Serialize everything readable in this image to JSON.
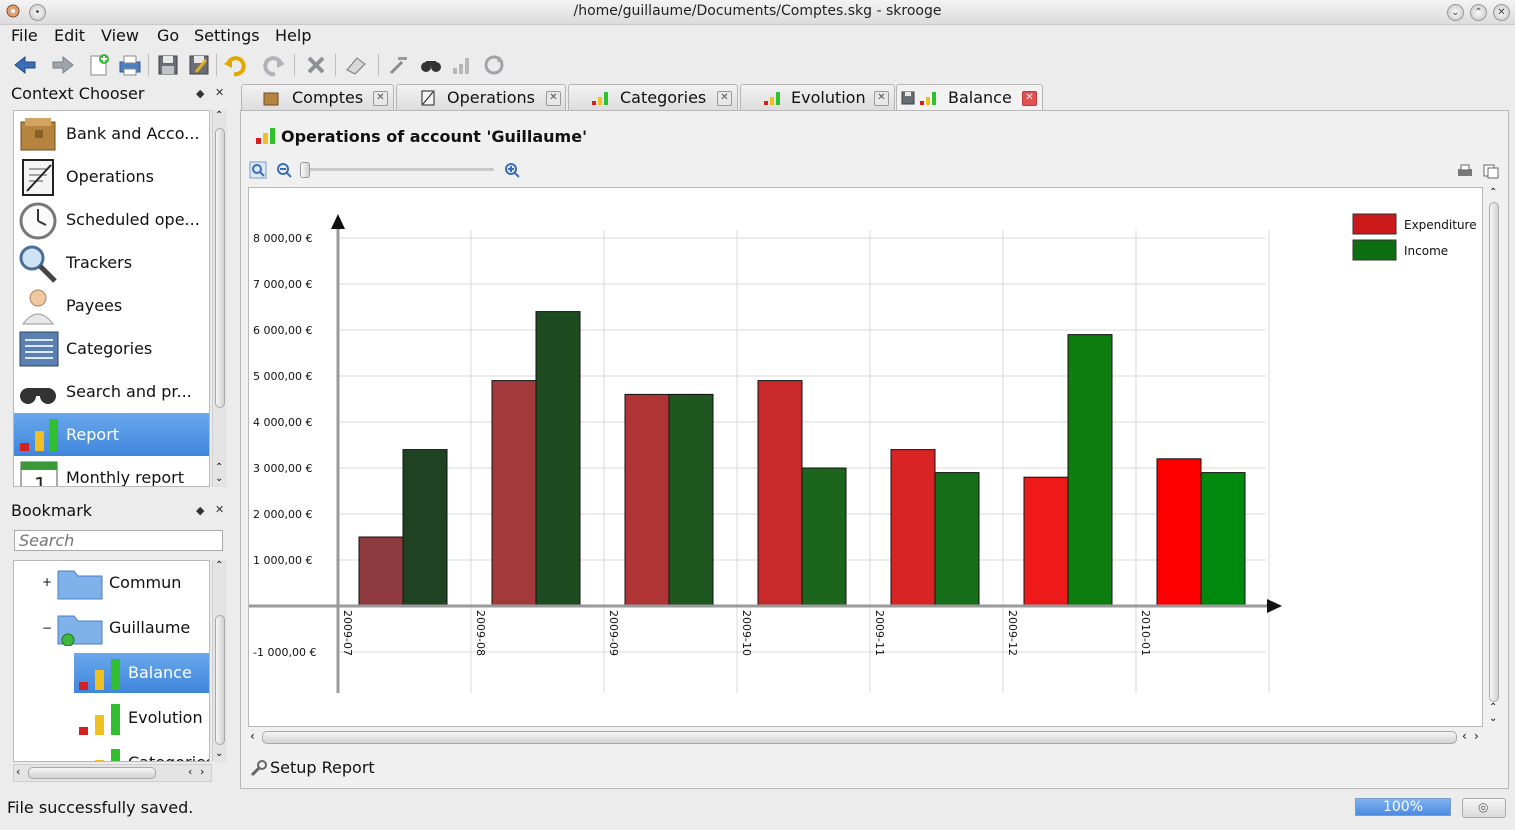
{
  "window": {
    "title": "/home/guillaume/Documents/Comptes.skg - skrooge"
  },
  "menu": [
    "File",
    "Edit",
    "View",
    "Go",
    "Settings",
    "Help"
  ],
  "toolbar": {
    "icons": [
      "back-icon",
      "forward-icon",
      "new-icon",
      "print-icon",
      "save-icon",
      "save-as-icon",
      "undo-icon",
      "redo-icon",
      "delete-icon",
      "clear-icon",
      "tools-icon",
      "find-icon",
      "report-icon",
      "refresh-icon"
    ]
  },
  "context_chooser": {
    "title": "Context Chooser",
    "items": [
      {
        "label": "Bank and Acco...",
        "icon": "bank-icon"
      },
      {
        "label": "Operations",
        "icon": "operations-icon"
      },
      {
        "label": "Scheduled ope...",
        "icon": "clock-icon"
      },
      {
        "label": "Trackers",
        "icon": "magnifier-icon"
      },
      {
        "label": "Payees",
        "icon": "person-icon"
      },
      {
        "label": "Categories",
        "icon": "categories-icon"
      },
      {
        "label": "Search and pr...",
        "icon": "binoculars-icon"
      },
      {
        "label": "Report",
        "icon": "report-icon",
        "selected": true
      },
      {
        "label": "Monthly report",
        "icon": "calendar-icon"
      }
    ]
  },
  "bookmark": {
    "title": "Bookmark",
    "search_placeholder": "Search",
    "items": [
      {
        "label": "Commun",
        "icon": "folder-icon"
      },
      {
        "label": "Guillaume",
        "icon": "folder-icon"
      },
      {
        "label": "Balance",
        "icon": "report-icon",
        "selected": true
      },
      {
        "label": "Evolution",
        "icon": "report-icon"
      },
      {
        "label": "Categories",
        "icon": "report-icon"
      }
    ]
  },
  "tabs": [
    {
      "label": "Comptes",
      "active": false
    },
    {
      "label": "Operations",
      "active": false
    },
    {
      "label": "Categories",
      "active": false
    },
    {
      "label": "Evolution",
      "active": false
    },
    {
      "label": "Balance",
      "active": true
    }
  ],
  "report": {
    "heading": "Operations of account 'Guillaume'",
    "setup_label": "Setup Report"
  },
  "chart_data": {
    "type": "bar",
    "categories": [
      "2009-07",
      "2009-08",
      "2009-09",
      "2009-10",
      "2009-11",
      "2009-12",
      "2010-01"
    ],
    "series": [
      {
        "name": "Expenditure",
        "values": [
          1500,
          4900,
          4600,
          4900,
          3400,
          2800,
          3200
        ],
        "colors": [
          "#8e3a3f",
          "#a23a3c",
          "#b03335",
          "#c8292b",
          "#d82424",
          "#ee1a1a",
          "#ff0000"
        ]
      },
      {
        "name": "Income",
        "values": [
          3400,
          6400,
          4600,
          3000,
          2900,
          5900,
          2900
        ],
        "colors": [
          "#1f4322",
          "#1f4b21",
          "#1e5720",
          "#1b651d",
          "#166f18",
          "#0d7d10",
          "#008a0d"
        ]
      }
    ],
    "ylim": [
      -1800,
      8800
    ],
    "yticks": [
      -1000,
      1000,
      2000,
      3000,
      4000,
      5000,
      6000,
      7000,
      8000
    ],
    "ytick_labels": [
      "-1 000,00 €",
      "1 000,00 €",
      "2 000,00 €",
      "3 000,00 €",
      "4 000,00 €",
      "5 000,00 €",
      "6 000,00 €",
      "7 000,00 €",
      "8 000,00 €"
    ],
    "grid": true,
    "legend": "top-right",
    "legend_colors": [
      "#cc1a1a",
      "#0d6e12"
    ]
  },
  "status": {
    "message": "File successfully saved.",
    "progress": "100%",
    "progress_value": 1.0
  }
}
